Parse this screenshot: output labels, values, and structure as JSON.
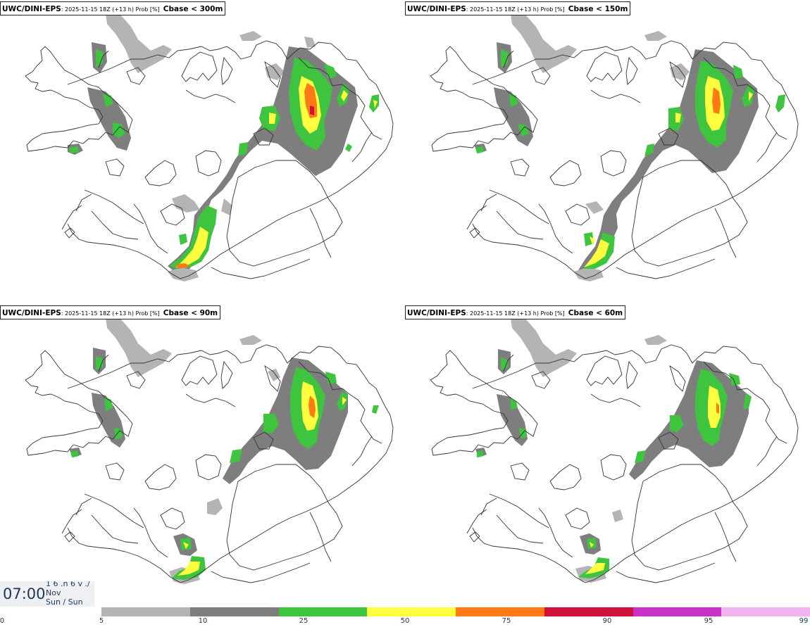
{
  "panels": [
    {
      "model": "UWC/DINI-EPS",
      "meta": ": 2025-11-15 18Z (+13 h) Prob [%]",
      "label": "Cbase < 300m"
    },
    {
      "model": "UWC/DINI-EPS",
      "meta": ": 2025-11-15 18Z (+13 h) Prob [%]",
      "label": "Cbase < 150m"
    },
    {
      "model": "UWC/DINI-EPS",
      "meta": ": 2025-11-15 18Z (+13 h) Prob [%]",
      "label": "Cbase < 90m"
    },
    {
      "model": "UWC/DINI-EPS",
      "meta": ": 2025-11-15 18Z (+13 h) Prob [%]",
      "label": "Cbase < 60m"
    }
  ],
  "valid_time": {
    "clock": "07:00",
    "line1": "1 6 .n 6 v ./",
    "line2": "Nov",
    "line3": "Sun / Sun"
  },
  "legend": {
    "ticks": [
      "0",
      "5",
      "10",
      "25",
      "50",
      "75",
      "90",
      "95",
      "99"
    ],
    "colors": [
      "#b4b4b4",
      "#7e7e7e",
      "#3ec43e",
      "#ffff40",
      "#ff7a14",
      "#d0103a",
      "#c832c8",
      "#f0b4f0"
    ]
  },
  "map_colors": {
    "p5": "#b4b4b4",
    "p10": "#7e7e7e",
    "p25": "#3ec43e",
    "p50": "#ffff40",
    "p75": "#ff7a14",
    "p90": "#d0103a"
  }
}
